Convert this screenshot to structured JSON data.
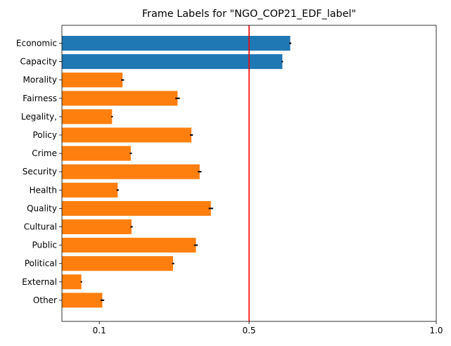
{
  "chart_data": {
    "type": "bar",
    "orientation": "horizontal",
    "title": "Frame Labels for \"NGO_COP21_EDF_label\"",
    "xlabel": "",
    "ylabel": "",
    "xlim": [
      0.0,
      1.0
    ],
    "xticks": [
      {
        "value": 0.1,
        "label": "0.1"
      },
      {
        "value": 0.5,
        "label": "0.5"
      },
      {
        "value": 1.0,
        "label": "1.0"
      }
    ],
    "threshold": {
      "value": 0.5,
      "color": "#ff0000"
    },
    "grid": false,
    "categories": [
      "Economic",
      "Capacity",
      "Morality",
      "Fairness",
      "Legality,",
      "Policy",
      "Crime",
      "Security",
      "Health",
      "Quality",
      "Cultural",
      "Public",
      "Political",
      "External",
      "Other"
    ],
    "values": [
      0.61,
      0.589,
      0.162,
      0.309,
      0.134,
      0.346,
      0.184,
      0.368,
      0.149,
      0.398,
      0.186,
      0.358,
      0.297,
      0.052,
      0.108
    ],
    "errors": [
      0.003,
      0.002,
      0.004,
      0.006,
      0.002,
      0.004,
      0.003,
      0.005,
      0.003,
      0.006,
      0.003,
      0.005,
      0.003,
      0.002,
      0.005
    ],
    "colors": {
      "above_threshold": "#1f77b4",
      "below_threshold": "#ff7f0e",
      "error_bar": "#000000"
    }
  }
}
